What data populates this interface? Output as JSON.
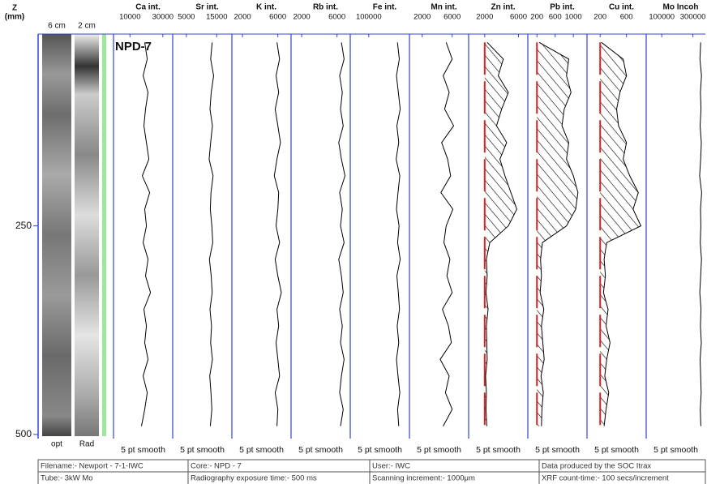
{
  "depth_axis": {
    "label_lines": [
      "Z",
      "(mm)"
    ],
    "ylim": [
      20,
      505
    ],
    "yticks": [
      250,
      500
    ],
    "depths": [
      30,
      50,
      70,
      90,
      110,
      130,
      150,
      170,
      190,
      210,
      230,
      250,
      270,
      290,
      310,
      330,
      350,
      370,
      390,
      410,
      430,
      450,
      470,
      490
    ]
  },
  "core_images": {
    "scales": [
      "6 cm",
      "2 cm"
    ],
    "labels": [
      "opt",
      "Rad"
    ]
  },
  "chart_data": [
    {
      "type": "line",
      "title": "Ca int.",
      "annotation": "NPD-7",
      "note": "5 pt smooth",
      "color": "#000000",
      "xlim": [
        0,
        36000
      ],
      "xticks": [
        10000,
        30000
      ],
      "values": [
        19000,
        20500,
        18000,
        21000,
        19500,
        18500,
        20000,
        21500,
        17500,
        22000,
        19000,
        20000,
        18000,
        21000,
        19500,
        22500,
        18500,
        20000,
        19000,
        21000,
        18000,
        20500,
        19000,
        17000
      ]
    },
    {
      "type": "line",
      "title": "Sr int.",
      "note": "5 pt smooth",
      "color": "#000000",
      "xlim": [
        500,
        20000
      ],
      "xticks": [
        5000,
        15000
      ],
      "values": [
        13500,
        13000,
        14000,
        13200,
        12800,
        13600,
        13000,
        12500,
        13800,
        13100,
        12900,
        13400,
        13700,
        12600,
        13200,
        13500,
        12800,
        13300,
        13000,
        13600,
        12700,
        13100,
        13400,
        12900
      ]
    },
    {
      "type": "line",
      "title": "K int.",
      "note": "5 pt smooth",
      "color": "#000000",
      "xlim": [
        800,
        7500
      ],
      "xticks": [
        2000,
        6000
      ],
      "values": [
        5900,
        6200,
        5800,
        6100,
        5700,
        6000,
        6300,
        5900,
        5600,
        6100,
        6000,
        5800,
        6200,
        5700,
        6000,
        6400,
        5900,
        6100,
        5800,
        6000,
        6200,
        5700,
        6000,
        5900
      ]
    },
    {
      "type": "line",
      "title": "Rb int.",
      "note": "5 pt smooth",
      "color": "#000000",
      "xlim": [
        800,
        7500
      ],
      "xticks": [
        2000,
        6000
      ],
      "values": [
        6500,
        6800,
        6300,
        6600,
        6400,
        6700,
        6200,
        6500,
        6900,
        6300,
        6600,
        6400,
        6800,
        6200,
        6500,
        6700,
        6300,
        6600,
        6400,
        6800,
        6500,
        6300,
        6700,
        6400
      ]
    },
    {
      "type": "line",
      "title": "Fe int.",
      "note": "5 pt smooth",
      "color": "#000000",
      "xlim": [
        0,
        320000
      ],
      "xticks": [
        100000
      ],
      "values": [
        255000,
        265000,
        250000,
        260000,
        270000,
        252000,
        262000,
        248000,
        268000,
        258000,
        250000,
        264000,
        256000,
        270000,
        252000,
        260000,
        266000,
        254000,
        262000,
        250000,
        258000,
        268000,
        256000,
        262000
      ]
    },
    {
      "type": "line",
      "title": "Mn int.",
      "note": "5 pt smooth",
      "color": "#000000",
      "xlim": [
        300,
        8200
      ],
      "xticks": [
        2000,
        6000
      ],
      "values": [
        5200,
        6000,
        4800,
        5600,
        5000,
        6200,
        4600,
        5400,
        5800,
        4500,
        6100,
        5200,
        4900,
        5700,
        5300,
        6000,
        4700,
        5500,
        5900,
        4400,
        5600,
        5100,
        6000,
        4800
      ]
    },
    {
      "type": "line",
      "title": "Zn int.",
      "note": "5 pt smooth",
      "color": "#000000",
      "xlim": [
        100,
        7100
      ],
      "xticks": [
        2000,
        6000
      ],
      "baseline": 2000,
      "baseline_color": "#e02020",
      "hatch": true,
      "values": [
        2300,
        4200,
        3600,
        4800,
        4000,
        3400,
        4600,
        3800,
        4400,
        5100,
        5800,
        4800,
        2600,
        2200,
        2300,
        2150,
        2400,
        2200,
        2250,
        2300,
        2100,
        2200,
        2150,
        2250
      ]
    },
    {
      "type": "line",
      "title": "Pb int.",
      "note": "5 pt smooth",
      "color": "#000000",
      "xlim": [
        0,
        1300
      ],
      "xticks": [
        200,
        600,
        1000
      ],
      "baseline": 200,
      "baseline_color": "#e02020",
      "hatch": true,
      "values": [
        250,
        900,
        850,
        950,
        800,
        750,
        900,
        850,
        1000,
        1100,
        1050,
        850,
        320,
        280,
        300,
        270,
        350,
        300,
        330,
        360,
        290,
        340,
        310,
        300
      ]
    },
    {
      "type": "line",
      "title": "Cu int.",
      "note": "5 pt smooth",
      "color": "#000000",
      "xlim": [
        0,
        900
      ],
      "xticks": [
        200,
        600
      ],
      "baseline": 200,
      "baseline_color": "#e02020",
      "hatch": true,
      "values": [
        220,
        550,
        600,
        500,
        450,
        480,
        600,
        550,
        650,
        780,
        700,
        820,
        300,
        260,
        280,
        250,
        320,
        290,
        350,
        300,
        270,
        330,
        290,
        260
      ]
    },
    {
      "type": "line",
      "title": "Mo Incoh",
      "note": "5 pt smooth",
      "color": "#000000",
      "xlim": [
        0,
        380000
      ],
      "xticks": [
        100000,
        300000
      ],
      "values": [
        350000,
        345000,
        355000,
        348000,
        352000,
        346000,
        354000,
        350000,
        343000,
        356000,
        349000,
        351000,
        347000,
        355000,
        350000,
        344000,
        352000,
        348000,
        354000,
        346000,
        350000,
        353000,
        347000,
        351000
      ]
    }
  ],
  "footer": {
    "rows": [
      [
        "Filename:- Newport - 7-1-IWC",
        "Core:- NPD - 7",
        "User:- IWC",
        "Data produced by the SOC Itrax"
      ],
      [
        "Tube:- 3kW Mo",
        "Radiography exposure time:- 500 ms",
        "Scanning increment:- 1000μm",
        "XRF count-time:- 100 secs/increment"
      ]
    ]
  }
}
